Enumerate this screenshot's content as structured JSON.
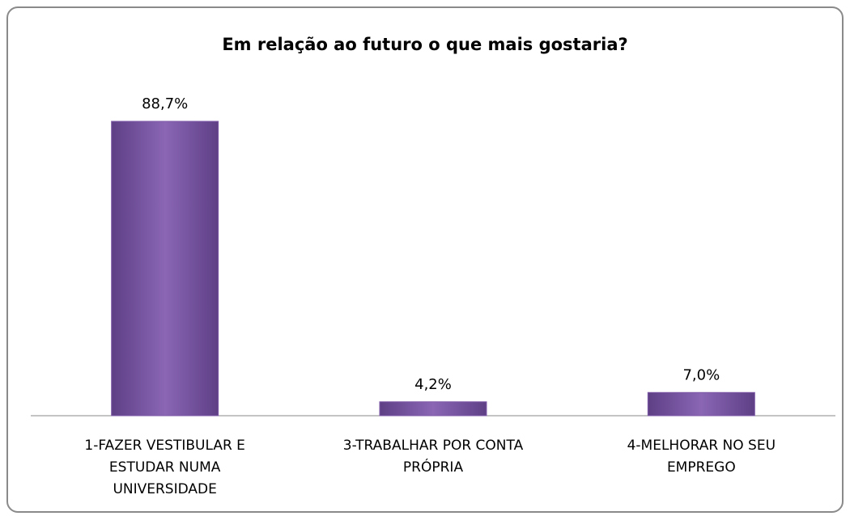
{
  "chart_data": {
    "type": "bar",
    "title": "Em relação ao futuro o que mais gostaria?",
    "categories": [
      "1-FAZER VESTIBULAR E ESTUDAR NUMA UNIVERSIDADE",
      "3-TRABALHAR POR CONTA PRÓPRIA",
      "4-MELHORAR NO SEU EMPREGO"
    ],
    "values": [
      88.7,
      4.2,
      7.0
    ],
    "value_labels": [
      "88,7%",
      "4,2%",
      "7,0%"
    ],
    "color": "#7f5aa8"
  }
}
